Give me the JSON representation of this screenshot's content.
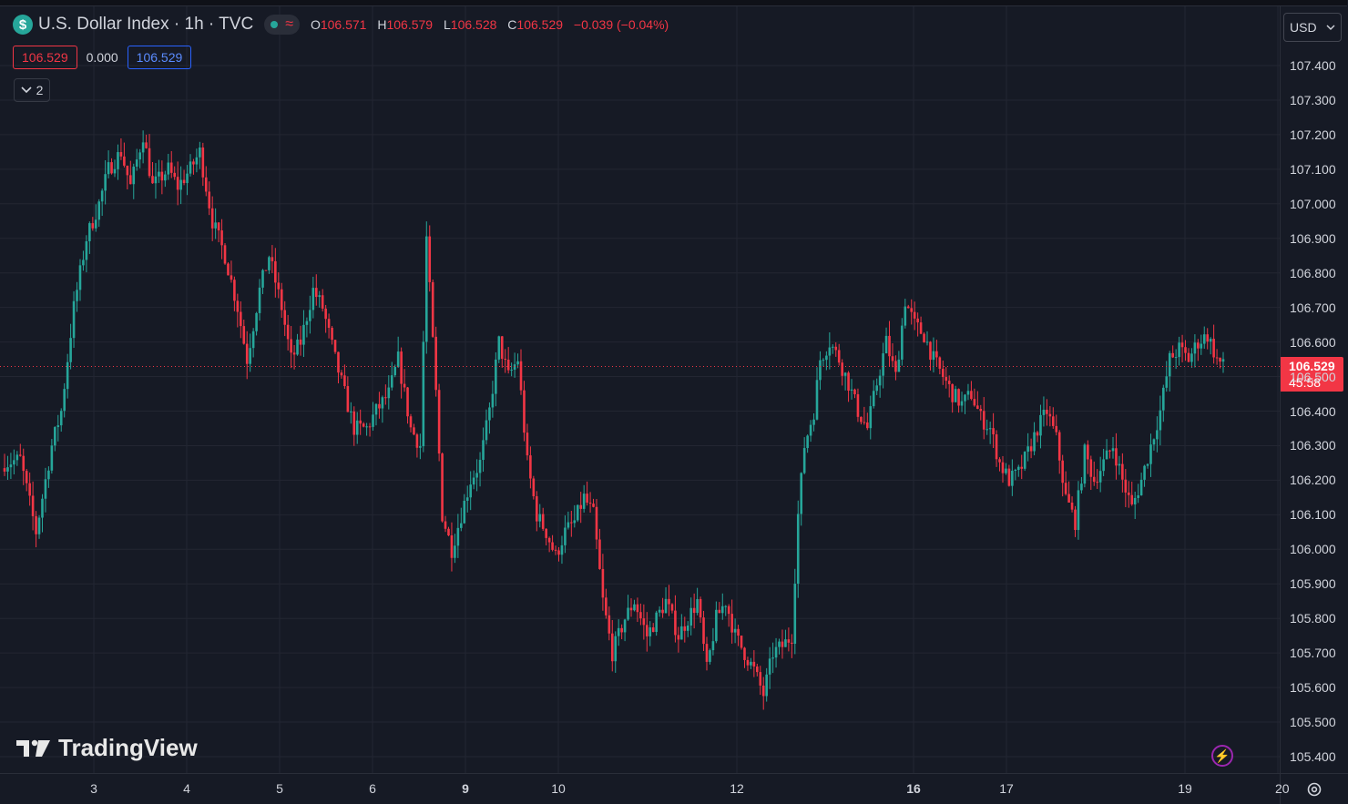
{
  "header": {
    "symbol_icon": "$",
    "title": "U.S. Dollar Index · 1h · TVC",
    "status_icons": [
      "live-dot-icon",
      "wave-icon"
    ],
    "ohlc": {
      "o_label": "O",
      "o": "106.571",
      "h_label": "H",
      "h": "106.579",
      "l_label": "L",
      "l": "106.528",
      "c_label": "C",
      "c": "106.529",
      "change": "−0.039 (−0.04%)"
    },
    "bid": "106.529",
    "spread": "0.000",
    "ask": "106.529",
    "collapse_label": "2"
  },
  "currency_selector": {
    "value": "USD"
  },
  "brand": {
    "name": "TradingView"
  },
  "price_tag": {
    "price": "106.529",
    "countdown": "45:58"
  },
  "colors": {
    "up": "#26a69a",
    "down": "#f23645",
    "background": "#161a25",
    "grid": "#232632"
  },
  "chart_data": {
    "type": "candlestick",
    "symbol": "U.S. Dollar Index",
    "interval": "1h",
    "source": "TVC",
    "y_ticks": [
      "107.400",
      "107.300",
      "107.200",
      "107.100",
      "107.000",
      "106.900",
      "106.800",
      "106.700",
      "106.600",
      "106.500",
      "106.400",
      "106.300",
      "106.200",
      "106.100",
      "106.000",
      "105.900",
      "105.800",
      "105.700",
      "105.600",
      "105.500",
      "105.400"
    ],
    "x_ticks": [
      {
        "label": "3",
        "bold": false
      },
      {
        "label": "4",
        "bold": false
      },
      {
        "label": "5",
        "bold": false
      },
      {
        "label": "6",
        "bold": false
      },
      {
        "label": "9",
        "bold": true
      },
      {
        "label": "10",
        "bold": false
      },
      {
        "label": "12",
        "bold": false
      },
      {
        "label": "16",
        "bold": true
      },
      {
        "label": "17",
        "bold": false
      },
      {
        "label": "19",
        "bold": false
      },
      {
        "label": "20",
        "bold": false
      }
    ],
    "ylim": [
      105.38,
      107.48
    ],
    "last_price": 106.529,
    "close_path": [
      [
        0,
        106.25
      ],
      [
        5,
        106.26
      ],
      [
        10,
        106.05
      ],
      [
        15,
        106.3
      ],
      [
        18,
        106.4
      ],
      [
        22,
        106.7
      ],
      [
        26,
        106.9
      ],
      [
        30,
        107.0
      ],
      [
        33,
        107.1
      ],
      [
        37,
        107.15
      ],
      [
        40,
        107.05
      ],
      [
        44,
        107.2
      ],
      [
        47,
        107.05
      ],
      [
        52,
        107.1
      ],
      [
        55,
        107.05
      ],
      [
        59,
        107.1
      ],
      [
        62,
        107.15
      ],
      [
        66,
        106.95
      ],
      [
        70,
        106.85
      ],
      [
        74,
        106.7
      ],
      [
        77,
        106.55
      ],
      [
        81,
        106.75
      ],
      [
        84,
        106.85
      ],
      [
        88,
        106.7
      ],
      [
        91,
        106.55
      ],
      [
        94,
        106.6
      ],
      [
        98,
        106.75
      ],
      [
        101,
        106.7
      ],
      [
        105,
        106.55
      ],
      [
        108,
        106.45
      ],
      [
        111,
        106.35
      ],
      [
        115,
        106.35
      ],
      [
        118,
        106.4
      ],
      [
        122,
        106.45
      ],
      [
        125,
        106.55
      ],
      [
        129,
        106.35
      ],
      [
        132,
        106.3
      ],
      [
        134,
        106.9
      ],
      [
        137,
        106.45
      ],
      [
        139,
        106.1
      ],
      [
        142,
        106.0
      ],
      [
        145,
        106.1
      ],
      [
        148,
        106.2
      ],
      [
        151,
        106.25
      ],
      [
        154,
        106.4
      ],
      [
        157,
        106.6
      ],
      [
        160,
        106.5
      ],
      [
        163,
        106.55
      ],
      [
        166,
        106.25
      ],
      [
        169,
        106.1
      ],
      [
        172,
        106.05
      ],
      [
        175,
        105.98
      ],
      [
        178,
        106.05
      ],
      [
        181,
        106.08
      ],
      [
        184,
        106.15
      ],
      [
        187,
        106.1
      ],
      [
        190,
        105.85
      ],
      [
        193,
        105.7
      ],
      [
        197,
        105.8
      ],
      [
        200,
        105.85
      ],
      [
        204,
        105.75
      ],
      [
        207,
        105.8
      ],
      [
        210,
        105.85
      ],
      [
        214,
        105.75
      ],
      [
        217,
        105.8
      ],
      [
        220,
        105.85
      ],
      [
        223,
        105.65
      ],
      [
        226,
        105.8
      ],
      [
        229,
        105.85
      ],
      [
        232,
        105.75
      ],
      [
        235,
        105.7
      ],
      [
        238,
        105.65
      ],
      [
        241,
        105.58
      ],
      [
        244,
        105.7
      ],
      [
        247,
        105.72
      ],
      [
        250,
        105.75
      ],
      [
        252,
        106.1
      ],
      [
        254,
        106.3
      ],
      [
        257,
        106.4
      ],
      [
        259,
        106.55
      ],
      [
        262,
        106.6
      ],
      [
        265,
        106.55
      ],
      [
        268,
        106.48
      ],
      [
        271,
        106.4
      ],
      [
        274,
        106.35
      ],
      [
        277,
        106.48
      ],
      [
        280,
        106.6
      ],
      [
        283,
        106.5
      ],
      [
        286,
        106.72
      ],
      [
        289,
        106.65
      ],
      [
        292,
        106.62
      ],
      [
        295,
        106.55
      ],
      [
        298,
        106.5
      ],
      [
        301,
        106.45
      ],
      [
        304,
        106.42
      ],
      [
        307,
        106.45
      ],
      [
        310,
        106.38
      ],
      [
        313,
        106.35
      ],
      [
        316,
        106.25
      ],
      [
        319,
        106.2
      ],
      [
        322,
        106.22
      ],
      [
        325,
        106.28
      ],
      [
        328,
        106.35
      ],
      [
        331,
        106.4
      ],
      [
        334,
        106.32
      ],
      [
        337,
        106.15
      ],
      [
        340,
        106.08
      ],
      [
        343,
        106.28
      ],
      [
        346,
        106.2
      ],
      [
        349,
        106.25
      ],
      [
        352,
        106.3
      ],
      [
        355,
        106.2
      ],
      [
        358,
        106.12
      ],
      [
        361,
        106.2
      ],
      [
        364,
        106.3
      ],
      [
        367,
        106.4
      ],
      [
        370,
        106.55
      ],
      [
        373,
        106.58
      ],
      [
        376,
        106.55
      ],
      [
        379,
        106.6
      ],
      [
        382,
        106.62
      ],
      [
        385,
        106.55
      ],
      [
        387,
        106.53
      ]
    ]
  }
}
